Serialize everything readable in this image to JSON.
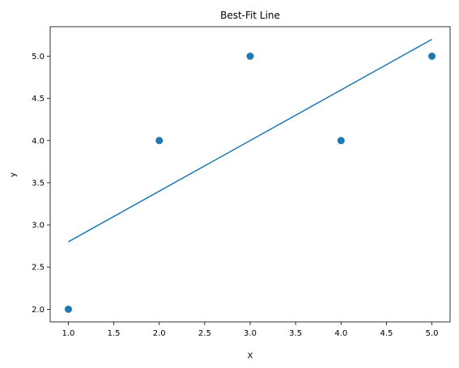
{
  "chart_data": {
    "type": "scatter",
    "title": "Best-Fit Line",
    "xlabel": "X",
    "ylabel": "y",
    "xlim": [
      0.8,
      5.2
    ],
    "ylim": [
      1.85,
      5.35
    ],
    "xticks": [
      1.0,
      1.5,
      2.0,
      2.5,
      3.0,
      3.5,
      4.0,
      4.5,
      5.0
    ],
    "xtick_labels": [
      "1.0",
      "1.5",
      "2.0",
      "2.5",
      "3.0",
      "3.5",
      "4.0",
      "4.5",
      "5.0"
    ],
    "yticks": [
      2.0,
      2.5,
      3.0,
      3.5,
      4.0,
      4.5,
      5.0
    ],
    "ytick_labels": [
      "2.0",
      "2.5",
      "3.0",
      "3.5",
      "4.0",
      "4.5",
      "5.0"
    ],
    "grid": false,
    "series": [
      {
        "kind": "scatter",
        "x": [
          1,
          2,
          3,
          4,
          5
        ],
        "y": [
          2,
          4,
          5,
          4,
          5
        ],
        "color": "#1f77b4"
      },
      {
        "kind": "line",
        "x": [
          1,
          5
        ],
        "y": [
          2.8,
          5.2
        ],
        "color": "#1f77b4"
      }
    ]
  }
}
